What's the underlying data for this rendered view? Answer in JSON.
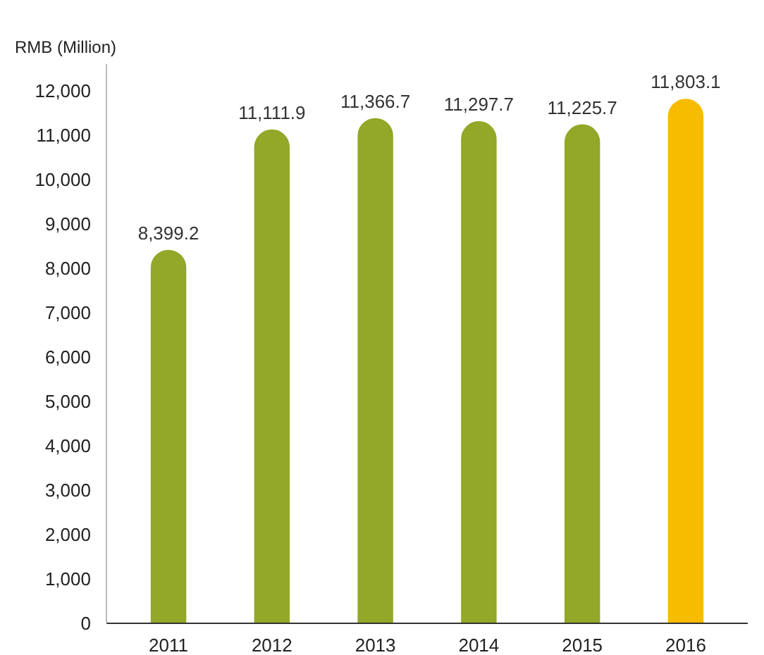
{
  "chart_data": {
    "type": "bar",
    "ylabel": "RMB (Million)",
    "categories": [
      "2011",
      "2012",
      "2013",
      "2014",
      "2015",
      "2016"
    ],
    "values": [
      8399.2,
      11111.9,
      11366.7,
      11297.7,
      11225.7,
      11803.1
    ],
    "colors": [
      "#93a728",
      "#93a728",
      "#93a728",
      "#93a728",
      "#93a728",
      "#f7bb00"
    ],
    "value_labels": [
      "8,399.2",
      "11,111.9",
      "11,366.7",
      "11,297.7",
      "11,225.7",
      "11,803.1"
    ],
    "ylim": [
      0,
      12600
    ],
    "yticks": [
      {
        "value": 0,
        "label": "0"
      },
      {
        "value": 1000,
        "label": "1,000"
      },
      {
        "value": 2000,
        "label": "2,000"
      },
      {
        "value": 3000,
        "label": "3,000"
      },
      {
        "value": 4000,
        "label": "4,000"
      },
      {
        "value": 5000,
        "label": "5,000"
      },
      {
        "value": 6000,
        "label": "6,000"
      },
      {
        "value": 7000,
        "label": "7,000"
      },
      {
        "value": 8000,
        "label": "8,000"
      },
      {
        "value": 9000,
        "label": "9,000"
      },
      {
        "value": 10000,
        "label": "10,000"
      },
      {
        "value": 11000,
        "label": "11,000"
      },
      {
        "value": 12000,
        "label": "12,000"
      }
    ],
    "grid": false
  }
}
